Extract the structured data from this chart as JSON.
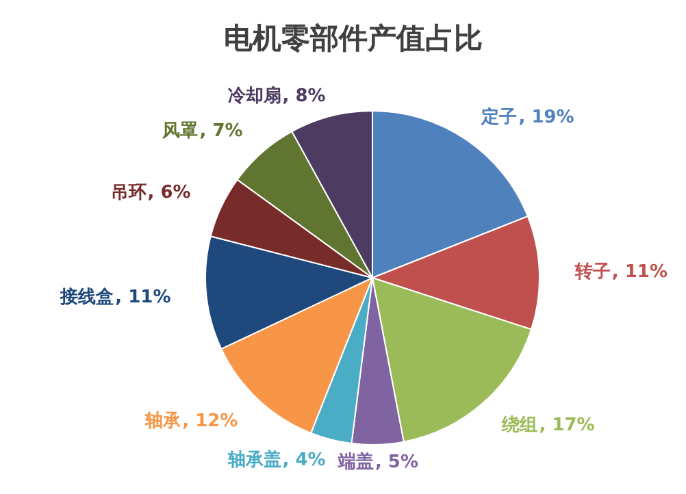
{
  "chart_data": {
    "type": "pie",
    "title": "电机零部件产值占比",
    "categories": [
      "定子",
      "转子",
      "绕组",
      "端盖",
      "轴承盖",
      "轴承",
      "接线盒",
      "吊环",
      "风罩",
      "冷却扇"
    ],
    "values": [
      19,
      11,
      17,
      5,
      4,
      12,
      11,
      6,
      7,
      8
    ],
    "colors": [
      "#4f81bd",
      "#c0504d",
      "#9bbb59",
      "#8064a2",
      "#4bacc6",
      "#f79646",
      "#1f497d",
      "#772c2a",
      "#5f7530",
      "#4d3b62"
    ],
    "value_labels": [
      ", 19%",
      ", 11%",
      ", 17%",
      ", 5%",
      ", 4%",
      ", 12%",
      ", 11%",
      ", 6%",
      ", 7%",
      ", 8%"
    ],
    "legend": false
  }
}
